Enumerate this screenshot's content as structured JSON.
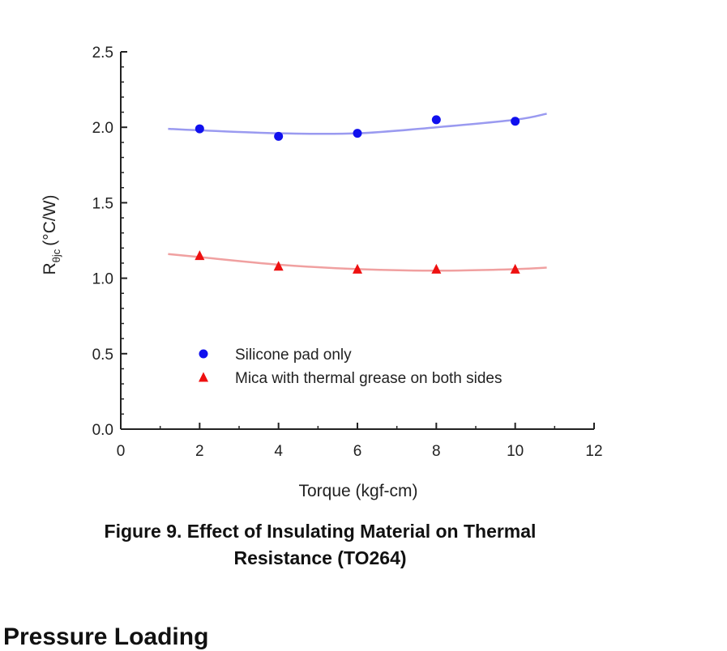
{
  "chart_data": {
    "type": "scatter",
    "xlabel": "Torque (kgf-cm)",
    "ylabel": "(°C/W)",
    "ylabel_symbol": "R",
    "ylabel_subscript": "θjc",
    "xlim": [
      0,
      12
    ],
    "ylim": [
      0,
      2.5
    ],
    "xticks": [
      "0",
      "2",
      "4",
      "6",
      "8",
      "10",
      "12"
    ],
    "yticks": [
      "0.0",
      "0.5",
      "1.0",
      "1.5",
      "2.0",
      "2.5"
    ],
    "grid": false,
    "legend_position": "lower-left",
    "series": [
      {
        "name": "Silicone pad only",
        "marker": "circle",
        "color": "#1010ee",
        "trend_color": "#9a9af0",
        "x": [
          2,
          4,
          6,
          8,
          10
        ],
        "y": [
          1.99,
          1.94,
          1.96,
          2.05,
          2.04
        ],
        "trend": [
          [
            1.2,
            1.99
          ],
          [
            2,
            1.98
          ],
          [
            4,
            1.96
          ],
          [
            6,
            1.96
          ],
          [
            8,
            2.0
          ],
          [
            10,
            2.05
          ],
          [
            10.8,
            2.09
          ]
        ]
      },
      {
        "name": "Mica with thermal grease on both sides",
        "marker": "triangle",
        "color": "#ee1010",
        "trend_color": "#f0a0a0",
        "x": [
          2,
          4,
          6,
          8,
          10
        ],
        "y": [
          1.15,
          1.08,
          1.06,
          1.06,
          1.06
        ],
        "trend": [
          [
            1.2,
            1.16
          ],
          [
            2,
            1.14
          ],
          [
            4,
            1.09
          ],
          [
            6,
            1.06
          ],
          [
            8,
            1.05
          ],
          [
            10,
            1.06
          ],
          [
            10.8,
            1.07
          ]
        ]
      }
    ]
  },
  "caption": {
    "line1": "Figure 9.   Effect of Insulating Material on Thermal",
    "line2": "Resistance (TO264)"
  },
  "next_heading": "Pressure Loading"
}
